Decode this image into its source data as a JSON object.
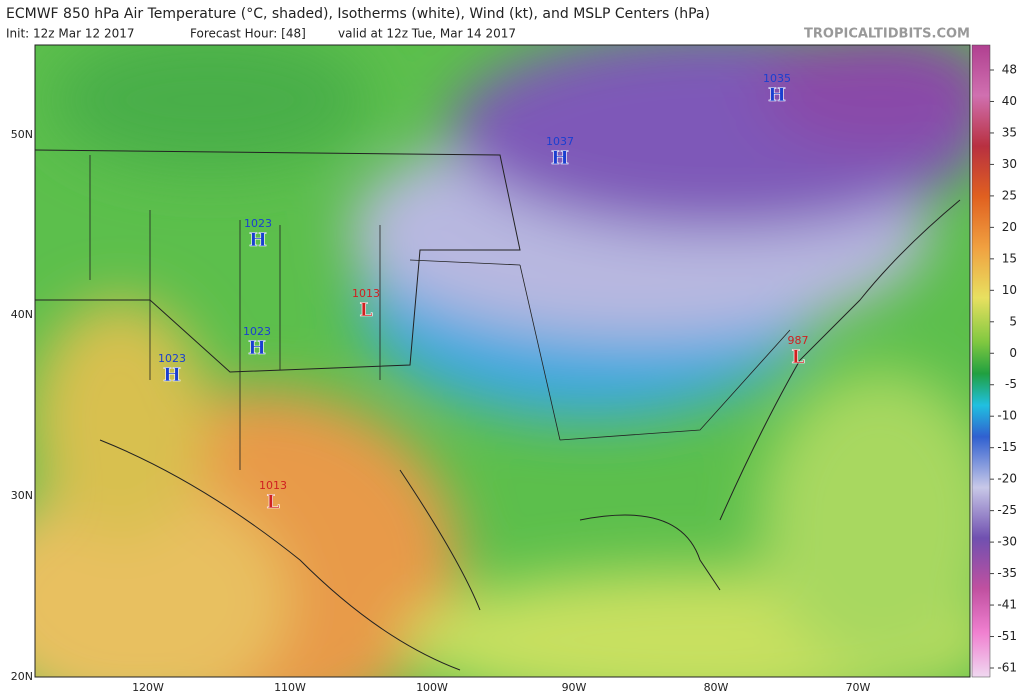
{
  "header": {
    "title": "ECMWF 850 hPa Air Temperature (°C, shaded), Isotherms (white), Wind (kt), and MSLP Centers (hPa)",
    "init": "Init: 12z Mar 12 2017",
    "forecast_hour": "Forecast Hour: [48]",
    "valid": "valid at 12z Tue, Mar 14 2017",
    "site": "TROPICALTIDBITS.COM"
  },
  "map": {
    "lat_labels": [
      "50N",
      "40N",
      "30N",
      "20N"
    ],
    "lon_labels": [
      "120W",
      "110W",
      "100W",
      "90W",
      "80W",
      "70W"
    ],
    "centers": [
      {
        "type": "H",
        "pressure": "1023"
      },
      {
        "type": "L",
        "pressure": "1013"
      },
      {
        "type": "H",
        "pressure": "1023"
      },
      {
        "type": "H",
        "pressure": "1023"
      },
      {
        "type": "L",
        "pressure": "1013"
      },
      {
        "type": "H",
        "pressure": "1037"
      },
      {
        "type": "H",
        "pressure": "1035"
      },
      {
        "type": "L",
        "pressure": "987"
      }
    ]
  },
  "colorbar": {
    "labels": [
      "48",
      "40",
      "35",
      "30",
      "25",
      "20",
      "15",
      "10",
      "5",
      "0",
      "-5",
      "-10",
      "-15",
      "-20",
      "-25",
      "-30",
      "-35",
      "-41",
      "-51",
      "-61"
    ]
  }
}
